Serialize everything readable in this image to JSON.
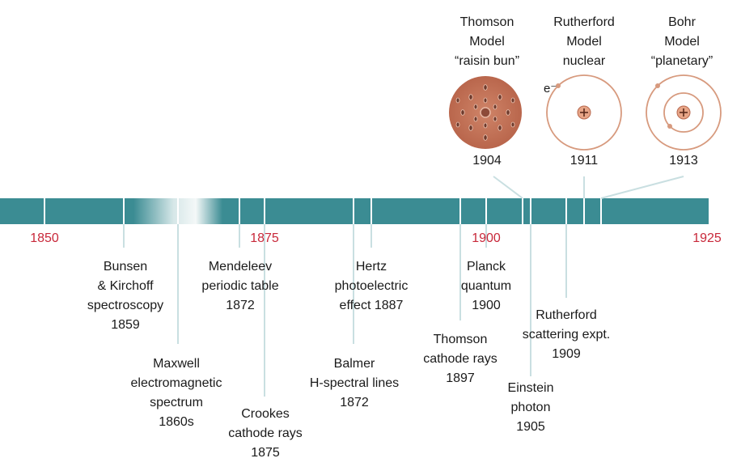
{
  "axis": {
    "years": [
      "1850",
      "1875",
      "1900",
      "1925"
    ],
    "range": [
      1850,
      1925
    ]
  },
  "models": [
    {
      "lines": [
        "Thomson",
        "Model",
        "“raisin bun”"
      ],
      "year": "1904",
      "icon": "thomson-raisin-bun-atom-icon"
    },
    {
      "lines": [
        "Rutherford",
        "Model",
        "nuclear"
      ],
      "year": "1911",
      "icon": "rutherford-nuclear-atom-icon"
    },
    {
      "lines": [
        "Bohr",
        "Model",
        "“planetary”"
      ],
      "year": "1913",
      "icon": "bohr-planetary-atom-icon"
    }
  ],
  "electron_label": "e⁻",
  "events": [
    {
      "id": "bunsen",
      "lines": [
        "Bunsen",
        "& Kirchoff",
        "spectroscopy",
        "1859"
      ]
    },
    {
      "id": "maxwell",
      "lines": [
        "Maxwell",
        "electromagnetic",
        "spectrum",
        "1860s"
      ]
    },
    {
      "id": "mendeleev",
      "lines": [
        "Mendeleev",
        "periodic table",
        "1872"
      ]
    },
    {
      "id": "crookes",
      "lines": [
        "Crookes",
        "cathode rays",
        "1875"
      ]
    },
    {
      "id": "hertz",
      "lines": [
        "Hertz",
        "photoelectric",
        "effect 1887"
      ]
    },
    {
      "id": "balmer",
      "lines": [
        "Balmer",
        "H-spectral lines",
        "1872"
      ]
    },
    {
      "id": "planck",
      "lines": [
        "Planck",
        "quantum",
        "1900"
      ]
    },
    {
      "id": "thomson",
      "lines": [
        "Thomson",
        "cathode rays",
        "1897"
      ]
    },
    {
      "id": "rutherford",
      "lines": [
        "Rutherford",
        "scattering expt.",
        "1909"
      ]
    },
    {
      "id": "einstein",
      "lines": [
        "Einstein",
        "photon",
        "1905"
      ]
    }
  ],
  "colors": {
    "bar": "#3b8c93",
    "year_label": "#c8283a",
    "connector": "#c9dfe1",
    "atom_orbit": "#d79a7e",
    "thomson_fill": "#c4735a"
  }
}
